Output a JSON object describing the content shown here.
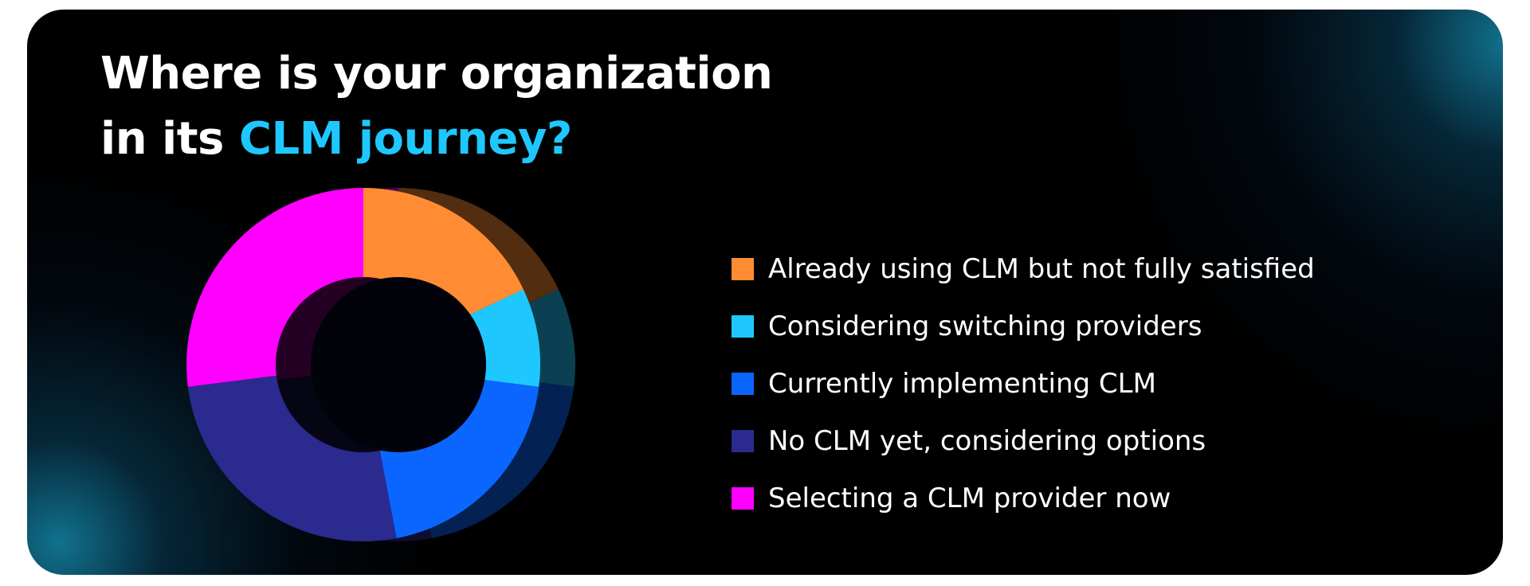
{
  "title": {
    "line1": "Where is your organization",
    "line2_prefix": "in its ",
    "line2_accent": "CLM journey?"
  },
  "colors": {
    "accent": "#1ec8ff",
    "background": "#000000",
    "glow": "#12788f"
  },
  "chart_data": {
    "type": "pie",
    "variant": "donut",
    "title": "Where is your organization in its CLM journey?",
    "legend_position": "right",
    "series": [
      {
        "name": "Already using CLM but not fully satisfied",
        "value": 18,
        "color": "#ff8c33"
      },
      {
        "name": "Considering switching providers",
        "value": 9,
        "color": "#1ec8ff"
      },
      {
        "name": "Currently implementing CLM",
        "value": 20,
        "color": "#0a66ff"
      },
      {
        "name": "No CLM yet, considering options",
        "value": 26,
        "color": "#2a2a8f"
      },
      {
        "name": "Selecting a CLM provider now",
        "value": 27,
        "color": "#ff00ff"
      }
    ]
  }
}
